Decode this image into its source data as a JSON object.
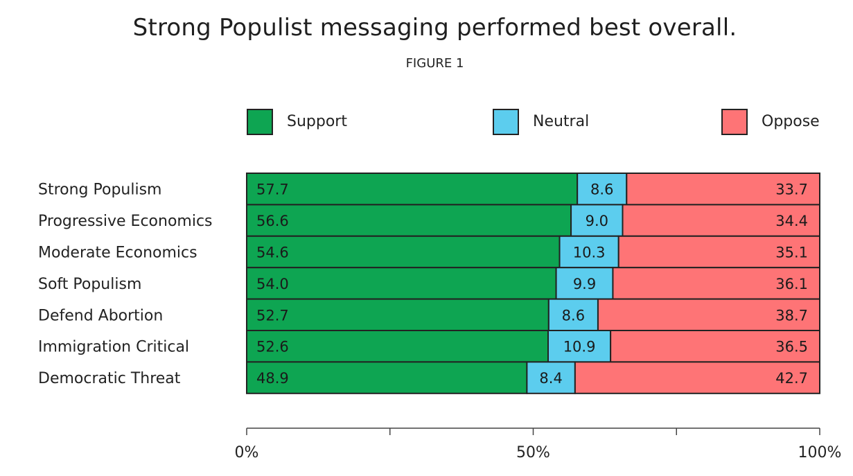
{
  "chart_data": {
    "type": "bar",
    "orientation": "horizontal",
    "stacked": true,
    "title": "Strong Populist messaging performed best overall.",
    "subtitle": "FIGURE 1",
    "categories": [
      "Strong Populism",
      "Progressive Economics",
      "Moderate Economics",
      "Soft Populism",
      "Defend Abortion",
      "Immigration Critical",
      "Democratic Threat"
    ],
    "series": [
      {
        "name": "Support",
        "color": "#0ea552",
        "values": [
          57.7,
          56.6,
          54.6,
          54.0,
          52.7,
          52.6,
          48.9
        ],
        "labels": [
          "57.7",
          "56.6",
          "54.6",
          "54.0",
          "52.7",
          "52.6",
          "48.9"
        ]
      },
      {
        "name": "Neutral",
        "color": "#5ccdee",
        "values": [
          8.6,
          9.0,
          10.3,
          9.9,
          8.6,
          10.9,
          8.4
        ],
        "labels": [
          "8.6",
          "9.0",
          "10.3",
          "9.9",
          "8.6",
          "10.9",
          "8.4"
        ]
      },
      {
        "name": "Oppose",
        "color": "#fe7476",
        "values": [
          33.7,
          34.4,
          35.1,
          36.1,
          38.7,
          36.5,
          42.7
        ],
        "labels": [
          "33.7",
          "34.4",
          "35.1",
          "36.1",
          "38.7",
          "36.5",
          "42.7"
        ]
      }
    ],
    "xlim": [
      0,
      100
    ],
    "x_ticks": [
      0,
      25,
      50,
      75,
      100
    ],
    "x_tick_labels": [
      "0%",
      "",
      "50%",
      "",
      "100%"
    ],
    "legend_position": "top",
    "grid": false
  }
}
